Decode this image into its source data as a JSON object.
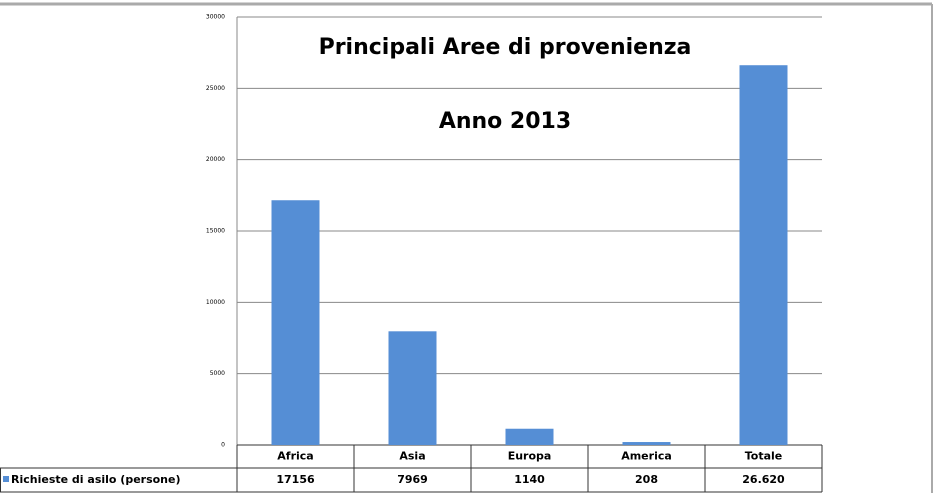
{
  "chart_data": {
    "type": "bar",
    "title": "Principali Aree di provenienza",
    "subtitle": "Anno 2013",
    "categories": [
      "Africa",
      "Asia",
      "Europa",
      "America",
      "Totale"
    ],
    "series": [
      {
        "name": "Richieste di asilo (persone)",
        "color": "#558ed5",
        "values": [
          17156,
          7969,
          1140,
          208,
          26620
        ],
        "value_labels": [
          "17156",
          "7969",
          "1140",
          "208",
          "26.620"
        ]
      }
    ],
    "ylim": [
      0,
      30000
    ],
    "yticks": [
      0,
      5000,
      10000,
      15000,
      20000,
      25000,
      30000
    ],
    "grid": true
  }
}
